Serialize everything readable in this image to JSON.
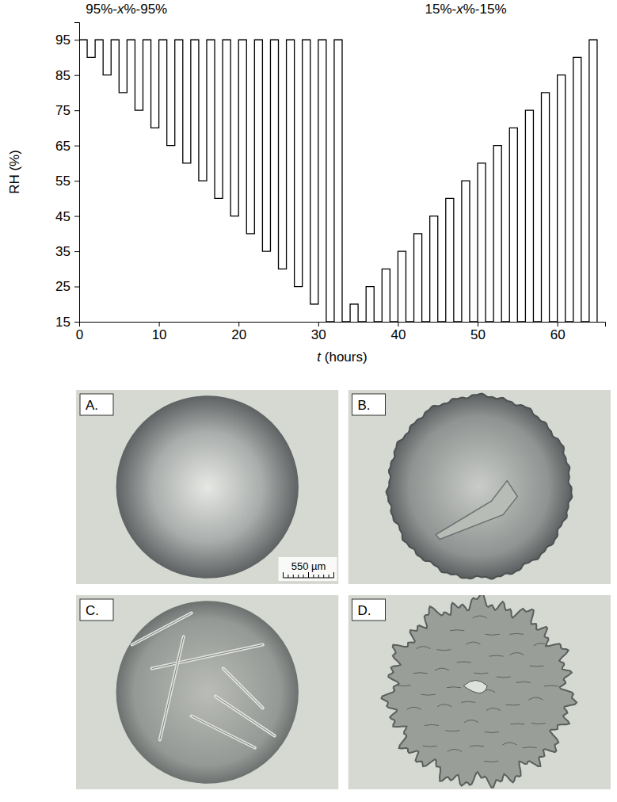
{
  "chart_data": {
    "type": "line",
    "annotations": [
      "95%-x%-95%",
      "15%-x%-15%"
    ],
    "x_label": "t (hours)",
    "y_label": "RH (%)",
    "color": "#000000",
    "x": [
      0,
      1,
      2,
      3,
      4,
      5,
      6,
      7,
      8,
      9,
      10,
      11,
      12,
      13,
      14,
      15,
      16,
      17,
      18,
      19,
      20,
      21,
      22,
      23,
      24,
      25,
      26,
      27,
      28,
      29,
      30,
      31,
      32,
      33,
      34,
      35,
      36,
      37,
      38,
      39,
      40,
      41,
      42,
      43,
      44,
      45,
      46,
      47,
      48,
      49,
      50,
      51,
      52,
      53,
      54,
      55,
      56,
      57,
      58,
      59,
      60,
      61,
      62,
      63,
      64,
      65
    ],
    "values": [
      95,
      90,
      95,
      85,
      95,
      80,
      95,
      75,
      95,
      70,
      95,
      65,
      95,
      60,
      95,
      55,
      95,
      50,
      95,
      45,
      95,
      40,
      95,
      35,
      95,
      30,
      95,
      25,
      95,
      20,
      95,
      15,
      95,
      15,
      20,
      15,
      25,
      15,
      30,
      15,
      35,
      15,
      40,
      15,
      45,
      15,
      50,
      15,
      55,
      15,
      60,
      15,
      65,
      15,
      70,
      15,
      75,
      15,
      80,
      15,
      85,
      15,
      90,
      15,
      95,
      15
    ],
    "xlim": [
      0,
      66
    ],
    "ylim": [
      15,
      100
    ],
    "xticks": [
      0,
      10,
      20,
      30,
      40,
      50,
      60
    ],
    "yticks": [
      15,
      25,
      35,
      45,
      55,
      65,
      75,
      85,
      95
    ],
    "grid": false
  },
  "images": {
    "panels": [
      "A.",
      "B.",
      "C.",
      "D."
    ],
    "scale_bar": "550 µm"
  }
}
